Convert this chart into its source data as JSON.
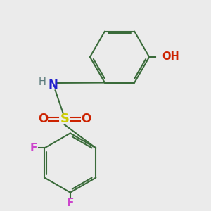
{
  "background_color": "#ebebeb",
  "bond_color": "#3a6b3a",
  "atom_colors": {
    "N": "#2222cc",
    "H": "#5a7a7a",
    "S": "#cccc00",
    "O": "#cc2200",
    "F": "#cc44cc",
    "OH_O": "#cc2200",
    "OH_H": "#5a7a7a"
  },
  "figsize": [
    3.0,
    3.0
  ],
  "dpi": 100
}
